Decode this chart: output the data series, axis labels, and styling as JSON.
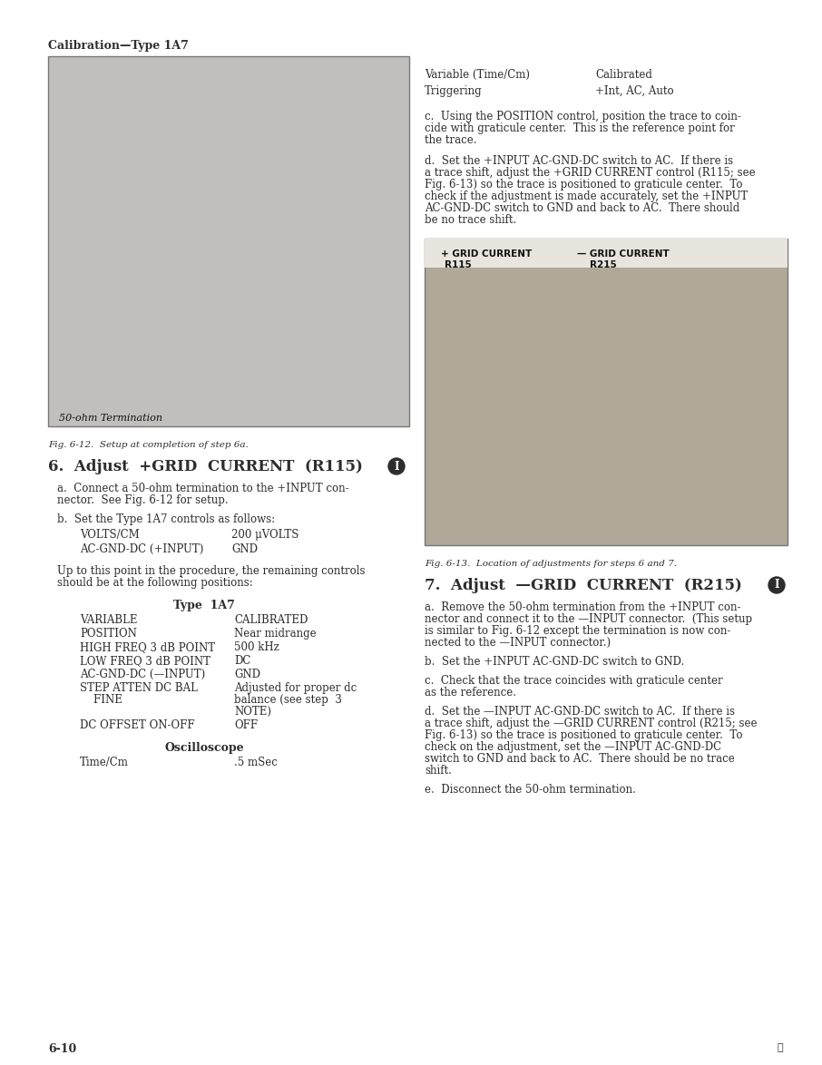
{
  "page_bg": "#ffffff",
  "text_color": "#2d2d2d",
  "header_text": "Calibration—Type 1A7",
  "footer_page": "6-10",
  "footer_symbol": "Ⓐ",
  "fig1_caption": "Fig. 6-12.  Setup at completion of step 6a.",
  "fig2_caption": "Fig. 6-13.  Location of adjustments for steps 6 and 7.",
  "fig1_label": "50-ohm Termination",
  "fig2_label1": "+ GRID CURRENT",
  "fig2_label1b": "R115",
  "fig2_label2": "— GRID CURRENT",
  "fig2_label2b": "R215",
  "right_col_top": [
    [
      "Variable (Time/Cm)",
      "Calibrated"
    ],
    [
      "Triggering",
      "+Int, AC, Auto"
    ]
  ],
  "section6_title": "6.  Adjust  +GRID  CURRENT  (R115)",
  "section6_lines_a": [
    "a.  Connect a 50-ohm termination to the +INPUT con-",
    "nector.  See Fig. 6-12 for setup."
  ],
  "section6_para_b": "b.  Set the Type 1A7 controls as follows:",
  "section6_table": [
    [
      "VOLTS/CM",
      "200 μVOLTS"
    ],
    [
      "AC-GND-DC (+INPUT)",
      "GND"
    ]
  ],
  "section6_lines_mid": [
    "Up to this point in the procedure, the remaining controls",
    "should be at the following positions:"
  ],
  "type1a7_title": "Type  1A7",
  "type1a7_table": [
    [
      "VARIABLE",
      "CALIBRATED"
    ],
    [
      "POSITION",
      "Near midrange"
    ],
    [
      "HIGH FREQ 3 dB POINT",
      "500 kHz"
    ],
    [
      "LOW FREQ 3 dB POINT",
      "DC"
    ],
    [
      "AC-GND-DC (—INPUT)",
      "GND"
    ],
    [
      "STEP ATTEN DC BAL\n    FINE",
      "Adjusted for proper dc\nbalance (see step  3\nNOTE)"
    ],
    [
      "DC OFFSET ON-OFF",
      "OFF"
    ]
  ],
  "oscilloscope_title": "Oscilloscope",
  "oscilloscope_table": [
    [
      "Time/Cm",
      ".5 mSec"
    ]
  ],
  "lines_c": [
    "c.  Using the POSITION control, position the trace to coin-",
    "cide with graticule center.  This is the reference point for",
    "the trace."
  ],
  "lines_d": [
    "d.  Set the +INPUT AC-GND-DC switch to AC.  If there is",
    "a trace shift, adjust the +GRID CURRENT control (R115; see",
    "Fig. 6-13) so the trace is positioned to graticule center.  To",
    "check if the adjustment is made accurately, set the +INPUT",
    "AC-GND-DC switch to GND and back to AC.  There should",
    "be no trace shift."
  ],
  "section7_title": "7.  Adjust  —GRID  CURRENT  (R215)",
  "lines_7a": [
    "a.  Remove the 50-ohm termination from the +INPUT con-",
    "nector and connect it to the —INPUT connector.  (This setup",
    "is similar to Fig. 6-12 except the termination is now con-",
    "nected to the —INPUT connector.)"
  ],
  "section7_para_b": "b.  Set the +INPUT AC-GND-DC switch to GND.",
  "lines_7c": [
    "c.  Check that the trace coincides with graticule center",
    "as the reference."
  ],
  "lines_7d": [
    "d.  Set the —INPUT AC-GND-DC switch to AC.  If there is",
    "a trace shift, adjust the —GRID CURRENT control (R215; see",
    "Fig. 6-13) so the trace is positioned to graticule center.  To",
    "check on the adjustment, set the —INPUT AC-GND-DC",
    "switch to GND and back to AC.  There should be no trace",
    "shift."
  ],
  "section7_para_e": "e.  Disconnect the 50-ohm termination."
}
